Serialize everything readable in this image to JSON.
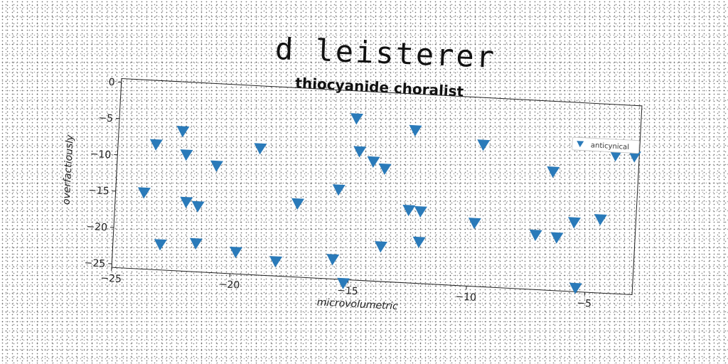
{
  "title": "d leisterer",
  "chart_data": {
    "type": "scatter",
    "title": "thiocyanide choralist",
    "xlabel": "microvolumetric",
    "ylabel": "overfactiously",
    "xlim": [
      -25,
      -3
    ],
    "ylim": [
      -25.5,
      0.5
    ],
    "xticks": [
      -25,
      -20,
      -15,
      -10,
      -5
    ],
    "yticks": [
      0,
      -5,
      -10,
      -15,
      -20,
      -25
    ],
    "grid": false,
    "legend_position": "top-right",
    "marker": "triangle-down",
    "color": "#2a7ab9",
    "series": [
      {
        "name": "anticynical",
        "points": [
          [
            -15.0,
            -3.3
          ],
          [
            -12.5,
            -4.5
          ],
          [
            -9.6,
            -6.0
          ],
          [
            -4.0,
            -6.5
          ],
          [
            -3.2,
            -6.5
          ],
          [
            -22.3,
            -6.3
          ],
          [
            -23.4,
            -8.3
          ],
          [
            -22.1,
            -9.5
          ],
          [
            -19.0,
            -8.1
          ],
          [
            -14.8,
            -7.8
          ],
          [
            -14.2,
            -9.1
          ],
          [
            -13.7,
            -10.0
          ],
          [
            -20.8,
            -10.8
          ],
          [
            -6.6,
            -9.2
          ],
          [
            -15.6,
            -13.2
          ],
          [
            -23.8,
            -15.0
          ],
          [
            -22.0,
            -16.0
          ],
          [
            -21.5,
            -16.5
          ],
          [
            -17.3,
            -15.4
          ],
          [
            -12.6,
            -15.5
          ],
          [
            -12.1,
            -15.6
          ],
          [
            -9.8,
            -16.8
          ],
          [
            -7.2,
            -18.0
          ],
          [
            -6.3,
            -18.2
          ],
          [
            -5.6,
            -16.0
          ],
          [
            -4.5,
            -15.4
          ],
          [
            -13.7,
            -20.7
          ],
          [
            -12.1,
            -19.8
          ],
          [
            -23.0,
            -22.0
          ],
          [
            -21.5,
            -21.6
          ],
          [
            -19.8,
            -22.5
          ],
          [
            -18.1,
            -23.5
          ],
          [
            -15.7,
            -22.8
          ],
          [
            -15.2,
            -26.0
          ],
          [
            -5.4,
            -25.0
          ]
        ]
      }
    ]
  }
}
